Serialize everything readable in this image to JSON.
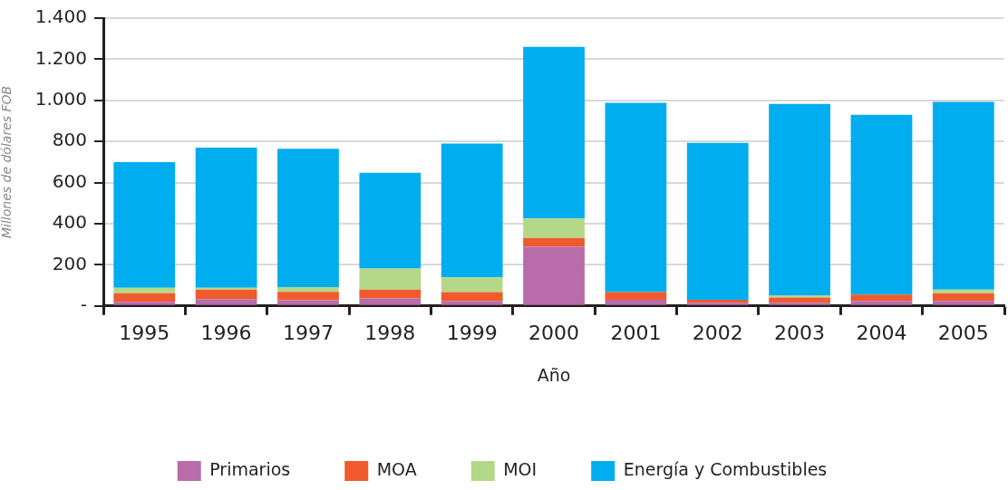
{
  "chart_data": {
    "type": "bar",
    "stacked": true,
    "xlabel": "Año",
    "ylabel": "Millones de dólares FOB",
    "categories": [
      "1995",
      "1996",
      "1997",
      "1998",
      "1999",
      "2000",
      "2001",
      "2002",
      "2003",
      "2004",
      "2005"
    ],
    "series": [
      {
        "name": "Primarios",
        "color": "#b86caa",
        "values": [
          20,
          33,
          28,
          37,
          23,
          288,
          30,
          16,
          16,
          24,
          24
        ]
      },
      {
        "name": "MOA",
        "color": "#f05a2c",
        "values": [
          42,
          47,
          40,
          43,
          44,
          43,
          37,
          14,
          25,
          31,
          38
        ]
      },
      {
        "name": "MOI",
        "color": "#b4d888",
        "values": [
          26,
          8,
          24,
          102,
          72,
          94,
          0,
          0,
          9,
          0,
          18
        ]
      },
      {
        "name": "Energía y Combustibles",
        "color": "#00adee",
        "values": [
          612,
          682,
          673,
          466,
          651,
          835,
          921,
          763,
          933,
          875,
          913
        ]
      }
    ],
    "ylim": [
      0,
      1400
    ],
    "yticks": [
      {
        "value": 0,
        "label": "-"
      },
      200,
      400,
      600,
      800,
      {
        "value": 1000,
        "label": "1.000"
      },
      {
        "value": 1200,
        "label": "1.200"
      },
      {
        "value": 1400,
        "label": "1.400"
      }
    ],
    "grid": "y",
    "legend": "bottom"
  }
}
